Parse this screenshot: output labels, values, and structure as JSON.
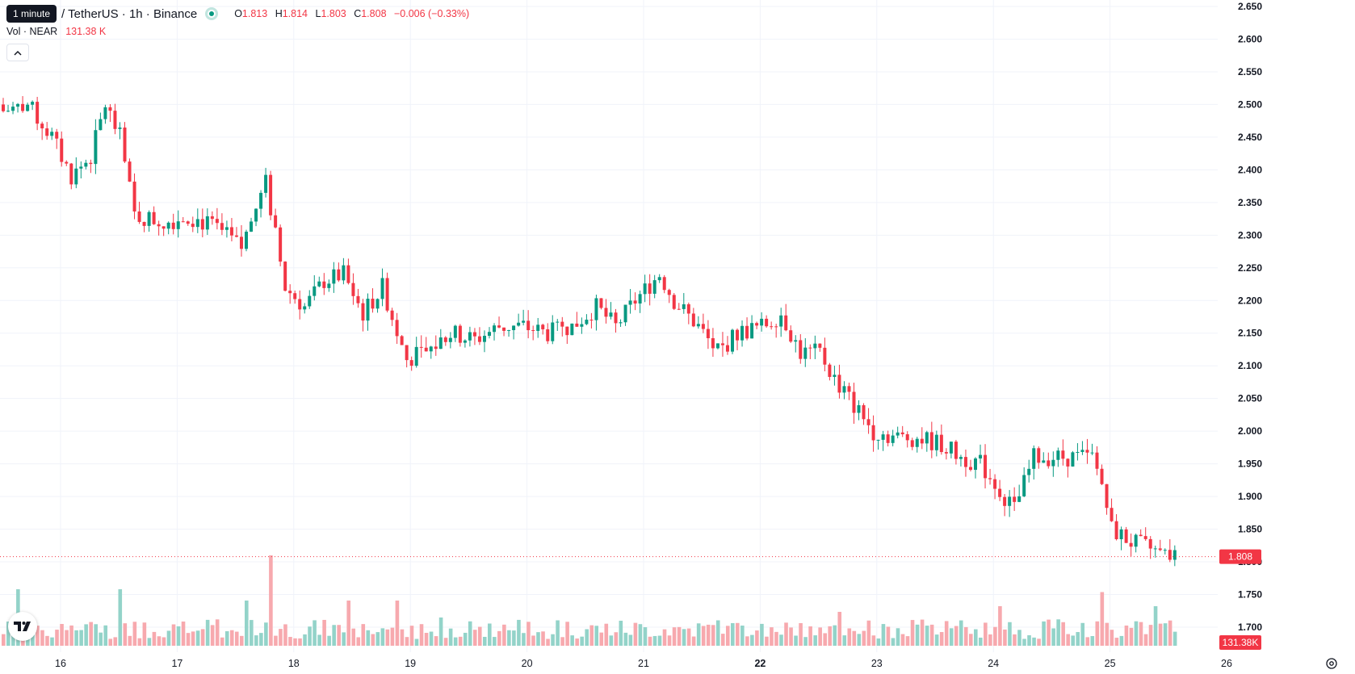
{
  "header": {
    "tooltip": "1 minute",
    "symbol": "/ TetherUS · 1h · Binance",
    "o_label": "O",
    "o": "1.813",
    "h_label": "H",
    "h": "1.814",
    "l_label": "L",
    "l": "1.803",
    "c_label": "C",
    "c": "1.808",
    "change": "−0.006 (−0.33%)",
    "vol_label": "Vol · NEAR",
    "vol_value": "131.38 K",
    "collapse_icon": "chevron-up-icon"
  },
  "price_badge": "1.808",
  "volume_badge": "131.38K",
  "colors": {
    "up": "#089981",
    "down": "#f23645",
    "up_vol": "#93d3c9",
    "down_vol": "#f7a9ae",
    "grid": "#f0f3fa",
    "axis_text": "#131722"
  },
  "chart_data": {
    "type": "candlestick",
    "interval": "1h",
    "y_ticks": [
      "1.700",
      "1.750",
      "1.800",
      "1.850",
      "1.900",
      "1.950",
      "2.000",
      "2.050",
      "2.100",
      "2.150",
      "2.200",
      "2.250",
      "2.300",
      "2.350",
      "2.400",
      "2.450",
      "2.500",
      "2.550",
      "2.600",
      "2.650"
    ],
    "ylim": [
      1.68,
      2.665
    ],
    "x_ticks": [
      {
        "label": "16",
        "bold": false
      },
      {
        "label": "17",
        "bold": false
      },
      {
        "label": "18",
        "bold": false
      },
      {
        "label": "19",
        "bold": false
      },
      {
        "label": "20",
        "bold": false
      },
      {
        "label": "21",
        "bold": false
      },
      {
        "label": "22",
        "bold": true
      },
      {
        "label": "23",
        "bold": false
      },
      {
        "label": "24",
        "bold": false
      },
      {
        "label": "25",
        "bold": false
      },
      {
        "label": "26",
        "bold": false
      }
    ],
    "last_price": 1.808,
    "close_anchors": [
      [
        0,
        2.49
      ],
      [
        5,
        2.5
      ],
      [
        10,
        2.45
      ],
      [
        14,
        2.39
      ],
      [
        18,
        2.42
      ],
      [
        21,
        2.5
      ],
      [
        24,
        2.45
      ],
      [
        27,
        2.33
      ],
      [
        33,
        2.32
      ],
      [
        38,
        2.33
      ],
      [
        44,
        2.31
      ],
      [
        49,
        2.28
      ],
      [
        54,
        2.38
      ],
      [
        58,
        2.22
      ],
      [
        62,
        2.19
      ],
      [
        66,
        2.23
      ],
      [
        70,
        2.24
      ],
      [
        74,
        2.18
      ],
      [
        78,
        2.22
      ],
      [
        83,
        2.11
      ],
      [
        87,
        2.12
      ],
      [
        92,
        2.15
      ],
      [
        97,
        2.14
      ],
      [
        102,
        2.16
      ],
      [
        107,
        2.16
      ],
      [
        112,
        2.15
      ],
      [
        117,
        2.16
      ],
      [
        122,
        2.19
      ],
      [
        126,
        2.16
      ],
      [
        130,
        2.2
      ],
      [
        135,
        2.24
      ],
      [
        138,
        2.2
      ],
      [
        143,
        2.16
      ],
      [
        147,
        2.12
      ],
      [
        151,
        2.15
      ],
      [
        156,
        2.16
      ],
      [
        160,
        2.18
      ],
      [
        164,
        2.12
      ],
      [
        168,
        2.12
      ],
      [
        171,
        2.08
      ],
      [
        175,
        2.04
      ],
      [
        179,
        2.0
      ],
      [
        184,
        1.99
      ],
      [
        188,
        1.99
      ],
      [
        193,
        1.98
      ],
      [
        197,
        1.96
      ],
      [
        201,
        1.95
      ],
      [
        205,
        1.91
      ],
      [
        208,
        1.88
      ],
      [
        212,
        1.96
      ],
      [
        216,
        1.96
      ],
      [
        220,
        1.96
      ],
      [
        224,
        1.96
      ],
      [
        226,
        1.92
      ],
      [
        228,
        1.85
      ],
      [
        232,
        1.83
      ],
      [
        236,
        1.82
      ],
      [
        239,
        1.81
      ],
      [
        241,
        1.81
      ]
    ],
    "volume_spikes": [
      {
        "i": 3,
        "v": 1.0
      },
      {
        "i": 24,
        "v": 1.0
      },
      {
        "i": 50,
        "v": 0.8
      },
      {
        "i": 55,
        "v": 1.6
      },
      {
        "i": 71,
        "v": 0.8
      },
      {
        "i": 81,
        "v": 0.8
      },
      {
        "i": 90,
        "v": 0.5
      },
      {
        "i": 114,
        "v": 0.45
      },
      {
        "i": 147,
        "v": 0.45
      },
      {
        "i": 172,
        "v": 0.6
      },
      {
        "i": 205,
        "v": 0.7
      },
      {
        "i": 226,
        "v": 0.95
      },
      {
        "i": 237,
        "v": 0.7
      }
    ]
  }
}
